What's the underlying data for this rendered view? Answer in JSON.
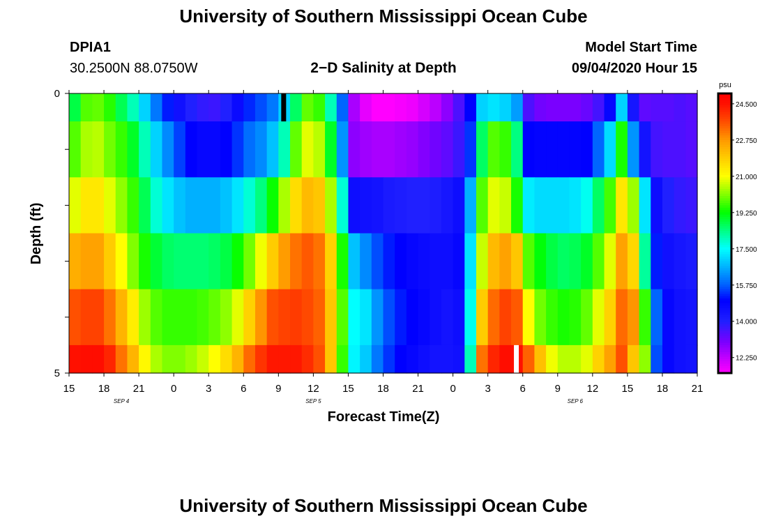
{
  "page": {
    "title": "University of Southern Mississippi Ocean Cube",
    "footer_title": "University of Southern Mississippi Ocean Cube",
    "station_id": "DPIA1",
    "station_coords": "30.2500N 88.0750W",
    "plot_title": "2−D Salinity at Depth",
    "model_start_label": "Model Start Time",
    "model_start_value": "09/04/2020 Hour 15"
  },
  "chart_data": {
    "type": "heatmap",
    "title": "2−D Salinity at Depth",
    "xlabel": "Forecast Time(Z)",
    "ylabel": "Depth (ft)",
    "x_ticks": [
      "15",
      "18",
      "21",
      "0",
      "3",
      "6",
      "9",
      "12",
      "15",
      "18",
      "21",
      "0",
      "3",
      "6",
      "9",
      "12",
      "15",
      "18",
      "21"
    ],
    "date_labels": [
      {
        "label": "SEP 4",
        "tick_index": 1.5
      },
      {
        "label": "SEP 5",
        "tick_index": 7
      },
      {
        "label": "SEP 6",
        "tick_index": 14.5
      }
    ],
    "y_ticks": [
      "0",
      "5"
    ],
    "y_range": [
      0,
      5
    ],
    "depth_layers": 5,
    "hours": 54,
    "colorbar": {
      "unit": "psu",
      "labels": [
        "24.500",
        "22.750",
        "21.000",
        "19.250",
        "17.500",
        "15.750",
        "14.000",
        "12.250"
      ],
      "stops": [
        {
          "v": 11.5,
          "c": "#ff00ff"
        },
        {
          "v": 12.25,
          "c": "#c000ff"
        },
        {
          "v": 13.0,
          "c": "#7a00ff"
        },
        {
          "v": 14.0,
          "c": "#2020ff"
        },
        {
          "v": 15.0,
          "c": "#0000ff"
        },
        {
          "v": 15.75,
          "c": "#0060ff"
        },
        {
          "v": 16.6,
          "c": "#00b0ff"
        },
        {
          "v": 17.5,
          "c": "#00ffff"
        },
        {
          "v": 18.4,
          "c": "#00ff80"
        },
        {
          "v": 19.25,
          "c": "#00ff00"
        },
        {
          "v": 20.1,
          "c": "#80ff00"
        },
        {
          "v": 21.0,
          "c": "#ffff00"
        },
        {
          "v": 21.9,
          "c": "#ffcc00"
        },
        {
          "v": 22.75,
          "c": "#ff9900"
        },
        {
          "v": 23.6,
          "c": "#ff5000"
        },
        {
          "v": 24.5,
          "c": "#ff1000"
        },
        {
          "v": 25.0,
          "c": "#ff0000"
        }
      ],
      "range": [
        11.5,
        25.0
      ]
    },
    "series": [
      {
        "depth": 0.5,
        "values": [
          18.8,
          19.8,
          19.9,
          19.5,
          18.7,
          18.0,
          17.0,
          16.0,
          15.2,
          14.5,
          14.0,
          13.8,
          13.7,
          14.0,
          14.7,
          15.3,
          15.6,
          16.0,
          17.0,
          18.6,
          19.9,
          19.6,
          18.0,
          15.8,
          12.5,
          11.8,
          11.5,
          11.5,
          11.6,
          11.7,
          12.0,
          12.3,
          12.8,
          13.5,
          15.0,
          17.0,
          17.2,
          17.0,
          16.4,
          13.5,
          13.1,
          13.0,
          13.0,
          13.0,
          13.2,
          13.6,
          14.8,
          17.0,
          14.3,
          13.3,
          13.4,
          13.4,
          13.5,
          13.4
        ]
      },
      {
        "depth": 1.5,
        "values": [
          19.8,
          20.4,
          20.5,
          20.0,
          19.6,
          19.0,
          18.0,
          17.0,
          16.2,
          15.5,
          15.0,
          14.8,
          14.8,
          15.0,
          15.4,
          15.9,
          16.2,
          16.8,
          18.0,
          19.9,
          20.8,
          20.5,
          19.0,
          16.3,
          12.8,
          12.6,
          12.5,
          12.5,
          12.6,
          12.7,
          12.9,
          13.1,
          13.3,
          13.7,
          15.4,
          18.6,
          19.8,
          19.6,
          18.4,
          15.0,
          14.9,
          14.9,
          14.9,
          14.9,
          15.0,
          15.8,
          17.1,
          19.4,
          16.3,
          14.4,
          13.6,
          13.5,
          13.5,
          13.4
        ]
      },
      {
        "depth": 2.5,
        "values": [
          20.8,
          21.4,
          21.4,
          20.8,
          20.2,
          19.6,
          18.7,
          17.8,
          17.2,
          16.8,
          16.6,
          16.6,
          16.6,
          16.8,
          17.2,
          17.8,
          18.4,
          19.3,
          20.4,
          21.6,
          22.2,
          22.0,
          20.4,
          17.8,
          14.6,
          14.5,
          14.4,
          14.2,
          14.1,
          14.0,
          14.0,
          14.1,
          14.3,
          14.6,
          16.6,
          19.8,
          20.8,
          20.6,
          19.4,
          17.3,
          17.1,
          17.1,
          17.1,
          17.2,
          17.6,
          18.6,
          19.7,
          21.4,
          20.3,
          17.2,
          14.6,
          14.0,
          13.8,
          13.7
        ]
      },
      {
        "depth": 3.5,
        "values": [
          22.4,
          22.6,
          22.6,
          21.9,
          21.0,
          20.1,
          19.4,
          18.9,
          18.6,
          18.5,
          18.5,
          18.5,
          18.6,
          18.8,
          19.3,
          20.0,
          20.9,
          21.9,
          22.7,
          23.2,
          23.5,
          23.2,
          21.8,
          19.4,
          16.8,
          16.2,
          15.6,
          15.2,
          15.0,
          14.8,
          14.7,
          14.6,
          14.6,
          14.8,
          17.2,
          20.6,
          22.2,
          22.6,
          22.0,
          19.8,
          19.2,
          18.8,
          18.6,
          18.7,
          19.0,
          19.8,
          20.8,
          22.6,
          21.7,
          18.2,
          15.2,
          14.5,
          14.3,
          14.2
        ]
      },
      {
        "depth": 4.5,
        "values": [
          23.6,
          23.8,
          23.8,
          23.2,
          22.3,
          21.3,
          20.3,
          19.8,
          19.6,
          19.6,
          19.6,
          19.7,
          19.9,
          20.2,
          20.8,
          21.8,
          22.8,
          23.6,
          23.8,
          23.9,
          23.7,
          23.4,
          22.0,
          19.8,
          17.5,
          17.2,
          16.3,
          15.6,
          15.2,
          15.0,
          14.8,
          14.6,
          14.4,
          14.6,
          17.6,
          21.9,
          23.3,
          23.8,
          23.5,
          21.0,
          20.0,
          19.6,
          19.4,
          19.5,
          19.9,
          20.8,
          21.8,
          23.3,
          22.8,
          19.6,
          15.8,
          14.8,
          14.5,
          14.4
        ]
      },
      {
        "depth": 5.0,
        "values": [
          24.5,
          24.6,
          24.6,
          24.2,
          23.2,
          22.3,
          21.1,
          20.4,
          20.1,
          20.1,
          20.3,
          20.6,
          21.0,
          21.6,
          22.3,
          23.3,
          24.0,
          24.4,
          24.4,
          24.4,
          24.1,
          23.6,
          22.0,
          19.6,
          17.4,
          16.9,
          16.0,
          15.4,
          15.0,
          14.8,
          14.6,
          14.4,
          14.4,
          14.5,
          18.0,
          23.2,
          24.2,
          24.6,
          24.5,
          23.4,
          22.1,
          20.9,
          20.5,
          20.5,
          20.8,
          21.8,
          22.6,
          23.6,
          22.0,
          20.2,
          15.6,
          14.8,
          14.5,
          14.4
        ]
      }
    ],
    "markers": [
      {
        "color": "#000000",
        "hour": 18,
        "depth_from": 0,
        "depth_to": 0.5
      },
      {
        "color": "#ffffff",
        "hour": 38,
        "depth_from": 4.5,
        "depth_to": 5
      }
    ]
  }
}
